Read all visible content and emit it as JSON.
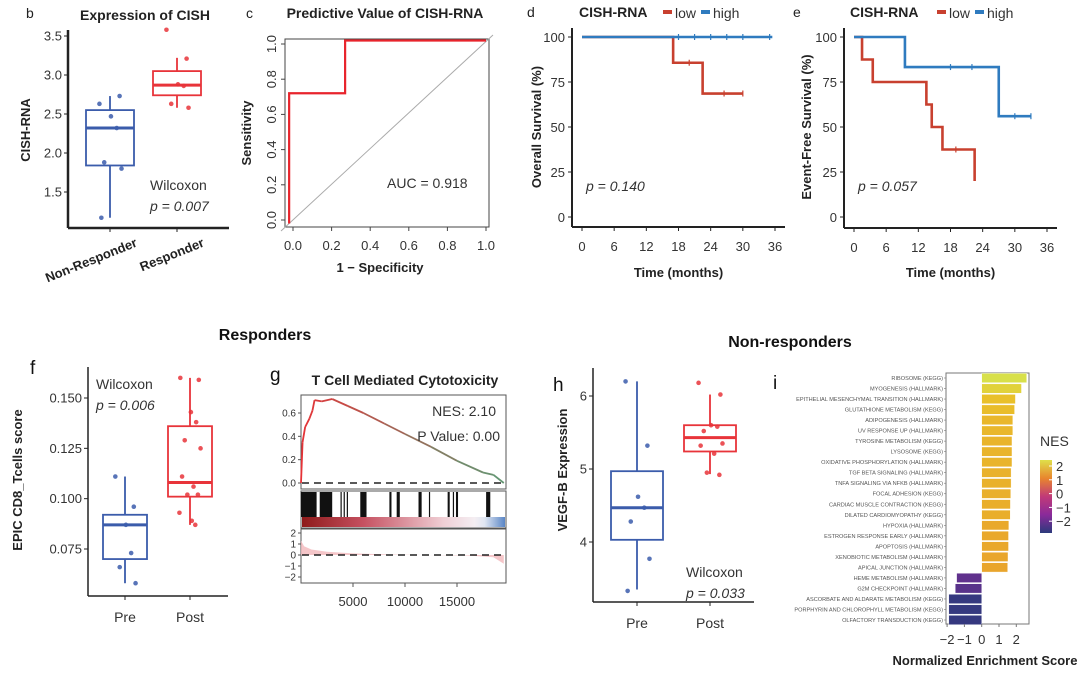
{
  "headers": {
    "responders": "Responders",
    "non_responders": "Non-responders"
  },
  "colors": {
    "blue": "#3b5cab",
    "red": "#e8343a",
    "km_blue": "#2f7bbf",
    "km_red": "#c8402f"
  },
  "chart_data": [
    {
      "panel": "b",
      "type": "box",
      "title": "Expression of CISH",
      "ylabel": "CISH-RNA",
      "xlabel": "",
      "yticks": [
        "1.5",
        "2.0",
        "2.5",
        "3.0",
        "3.5"
      ],
      "ylim": [
        1.1,
        3.6
      ],
      "categories": [
        "Non-Responder",
        "Responder"
      ],
      "boxes": [
        {
          "q1": 1.84,
          "median": 2.32,
          "q3": 2.55,
          "whisker_low": 1.17,
          "whisker_high": 2.73,
          "points": [
            2.63,
            2.73,
            2.47,
            2.32,
            1.88,
            1.8,
            1.17
          ]
        },
        {
          "q1": 2.74,
          "median": 2.87,
          "q3": 3.05,
          "whisker_low": 2.58,
          "whisker_high": 3.22,
          "points": [
            3.58,
            3.21,
            2.88,
            2.86,
            2.63,
            2.58
          ]
        }
      ],
      "annotation": [
        "Wilcoxon",
        "p = 0.007"
      ]
    },
    {
      "panel": "c",
      "type": "line",
      "title": "Predictive Value of CISH-RNA",
      "xlabel": "1 − Specificity",
      "ylabel": "Sensitivity",
      "xticks": [
        "0.0",
        "0.2",
        "0.4",
        "0.6",
        "0.8",
        "1.0"
      ],
      "yticks": [
        "0.0",
        "0.2",
        "0.4",
        "0.6",
        "0.8",
        "1.0"
      ],
      "xlim": [
        0,
        1
      ],
      "ylim": [
        0,
        1
      ],
      "roc": {
        "fpr": [
          -0.02,
          -0.02,
          0.27,
          0.27,
          1.0
        ],
        "tpr": [
          -0.02,
          0.72,
          0.72,
          1.02,
          1.02
        ]
      },
      "annotation": "AUC = 0.918"
    },
    {
      "panel": "d",
      "type": "line",
      "legend_title": "CISH-RNA",
      "xlabel": "Time (months)",
      "ylabel": "Overall Survival (%)",
      "xticks": [
        "0",
        "6",
        "12",
        "18",
        "24",
        "30",
        "36"
      ],
      "yticks": [
        "0",
        "25",
        "50",
        "75",
        "100"
      ],
      "xlim": [
        0,
        36
      ],
      "ylim": [
        0,
        100
      ],
      "series": [
        {
          "name": "low",
          "step_times": [
            0,
            17,
            22.5
          ],
          "survival": [
            100,
            85.7,
            68.6
          ],
          "end": 30,
          "censored": [
            20,
            26.5,
            30
          ]
        },
        {
          "name": "high",
          "step_times": [
            0
          ],
          "survival": [
            100
          ],
          "end": 35.5,
          "censored": [
            18,
            21,
            24,
            27,
            30,
            35
          ]
        }
      ],
      "annotation": "p = 0.140"
    },
    {
      "panel": "e",
      "type": "line",
      "legend_title": "CISH-RNA",
      "xlabel": "Time (months)",
      "ylabel": "Event-Free Survival (%)",
      "xticks": [
        "0",
        "6",
        "12",
        "18",
        "24",
        "30",
        "36"
      ],
      "yticks": [
        "0",
        "25",
        "50",
        "75",
        "100"
      ],
      "xlim": [
        0,
        36
      ],
      "ylim": [
        0,
        100
      ],
      "series": [
        {
          "name": "low",
          "step_times": [
            0,
            1.5,
            3.5,
            13.5,
            14.5,
            16.5,
            22.5
          ],
          "survival": [
            100,
            87.5,
            75,
            62.5,
            50,
            37.5,
            20
          ],
          "end": 22.5,
          "censored": [
            19
          ]
        },
        {
          "name": "high",
          "step_times": [
            0,
            9.5,
            27
          ],
          "survival": [
            100,
            83.3,
            56
          ],
          "end": 33,
          "censored": [
            18,
            22,
            30,
            33
          ]
        }
      ],
      "annotation": "p = 0.057"
    },
    {
      "panel": "f",
      "type": "box",
      "ylabel": "EPIC CD8_Tcells score",
      "yticks": [
        "0.075",
        "0.100",
        "0.125",
        "0.150"
      ],
      "ylim": [
        0.055,
        0.165
      ],
      "categories": [
        "Pre",
        "Post"
      ],
      "boxes": [
        {
          "q1": 0.07,
          "median": 0.087,
          "q3": 0.092,
          "whisker_low": 0.058,
          "whisker_high": 0.111,
          "points": [
            0.111,
            0.096,
            0.087,
            0.073,
            0.066,
            0.058
          ]
        },
        {
          "q1": 0.101,
          "median": 0.108,
          "q3": 0.136,
          "whisker_low": 0.087,
          "whisker_high": 0.16,
          "points": [
            0.16,
            0.159,
            0.143,
            0.138,
            0.129,
            0.125,
            0.111,
            0.106,
            0.102,
            0.102,
            0.093,
            0.089,
            0.087
          ]
        }
      ],
      "annotation": [
        "Wilcoxon",
        "p = 0.006"
      ]
    },
    {
      "panel": "g",
      "type": "line",
      "title": "T Cell Mediated Cytotoxicity",
      "xticks": [
        "5000",
        "10000",
        "15000"
      ],
      "es_yticks": [
        "0.0",
        "0.2",
        "0.4",
        "0.6"
      ],
      "metric_yticks": [
        "2",
        "1",
        "0",
        "−1",
        "−2"
      ],
      "xlim": [
        0,
        19600
      ],
      "es_ylim": [
        -0.03,
        0.78
      ],
      "running_es": [
        [
          0,
          0
        ],
        [
          150,
          0.35
        ],
        [
          400,
          0.48
        ],
        [
          800,
          0.55
        ],
        [
          1100,
          0.62
        ],
        [
          1300,
          0.71
        ],
        [
          2000,
          0.7
        ],
        [
          3000,
          0.72
        ],
        [
          4500,
          0.66
        ],
        [
          6000,
          0.6
        ],
        [
          8000,
          0.51
        ],
        [
          10000,
          0.42
        ],
        [
          12500,
          0.31
        ],
        [
          15000,
          0.19
        ],
        [
          17500,
          0.09
        ],
        [
          18500,
          0.07
        ],
        [
          19500,
          0
        ]
      ],
      "hit_ranges": [
        [
          0,
          1500
        ],
        [
          1800,
          3000
        ],
        [
          3800,
          3900
        ],
        [
          4100,
          4200
        ],
        [
          4400,
          4500
        ],
        [
          5700,
          6300
        ],
        [
          8500,
          8700
        ],
        [
          9200,
          9500
        ],
        [
          11300,
          11600
        ],
        [
          12300,
          12400
        ],
        [
          14100,
          14300
        ],
        [
          14600,
          14700
        ],
        [
          14900,
          15100
        ],
        [
          17800,
          18200
        ]
      ],
      "ranked_metric": [
        [
          0,
          1.3
        ],
        [
          300,
          0.8
        ],
        [
          1000,
          0.5
        ],
        [
          2500,
          0.3
        ],
        [
          5000,
          0.15
        ],
        [
          9000,
          0.03
        ],
        [
          12000,
          0
        ],
        [
          16000,
          -0.05
        ],
        [
          18500,
          -0.2
        ],
        [
          19500,
          -0.8
        ]
      ],
      "annotation": [
        "NES: 2.10",
        "P Value: 0.00"
      ]
    },
    {
      "panel": "h",
      "type": "box",
      "ylabel": "VEGF-B Expression",
      "yticks": [
        "4",
        "5",
        "6"
      ],
      "ylim": [
        3.2,
        6.35
      ],
      "categories": [
        "Pre",
        "Post"
      ],
      "boxes": [
        {
          "q1": 4.03,
          "median": 4.47,
          "q3": 4.97,
          "whisker_low": 3.35,
          "whisker_high": 6.2,
          "points": [
            6.2,
            5.32,
            4.62,
            4.47,
            4.28,
            3.77,
            3.33
          ]
        },
        {
          "q1": 5.24,
          "median": 5.43,
          "q3": 5.6,
          "whisker_low": 4.93,
          "whisker_high": 6.02,
          "points": [
            6.18,
            6.02,
            5.6,
            5.58,
            5.52,
            5.35,
            5.32,
            5.21,
            4.95,
            4.92
          ]
        }
      ],
      "annotation": [
        "Wilcoxon",
        "p = 0.033"
      ]
    },
    {
      "panel": "i",
      "type": "bar",
      "orientation": "horizontal",
      "xlabel": "Normalized Enrichment Score",
      "legend_title": "NES",
      "xticks": [
        "−2",
        "−1",
        "0",
        "1",
        "2"
      ],
      "xlim": [
        -2.2,
        2.8
      ],
      "legend_ticks": [
        "2",
        "1",
        "0",
        "−1",
        "−2"
      ],
      "colorscale": [
        [
          -2,
          "#2c3a7c"
        ],
        [
          -1,
          "#8a2a9a"
        ],
        [
          0,
          "#c13a78"
        ],
        [
          1,
          "#e8862e"
        ],
        [
          2,
          "#e9c32a"
        ],
        [
          2.6,
          "#d8e04a"
        ]
      ],
      "categories": [
        "RIBOSOME (KEGG)",
        "MYOGENESIS (HALLMARK)",
        "EPITHELIAL MESENCHYMAL TRANSITION (HALLMARK)",
        "GLUTATHIONE METABOLISM (KEGG)",
        "ADIPOGENESIS (HALLMARK)",
        "UV RESPONSE UP (HALLMARK)",
        "TYROSINE METABOLISM (KEGG)",
        "LYSOSOME (KEGG)",
        "OXIDATIVE PHOSPHORYLATION (HALLMARK)",
        "TGF BETA SIGNALING (HALLMARK)",
        "TNFA SIGNALING VIA NFKB (HALLMARK)",
        "FOCAL ADHESION (KEGG)",
        "CARDIAC MUSCLE CONTRACTION (KEGG)",
        "DILATED CARDIOMYOPATHY (KEGG)",
        "HYPOXIA (HALLMARK)",
        "ESTROGEN RESPONSE EARLY (HALLMARK)",
        "APOPTOSIS (HALLMARK)",
        "XENOBIOTIC METABOLISM (HALLMARK)",
        "APICAL JUNCTION (HALLMARK)",
        "HEME METABOLISM (HALLMARK)",
        "G2M CHECKPOINT (HALLMARK)",
        "ASCORBATE AND ALDARATE METABOLISM (KEGG)",
        "PORPHYRIN AND CHLOROPHYLL METABOLISM (KEGG)",
        "OLFACTORY TRANSDUCTION (KEGG)"
      ],
      "values": [
        2.6,
        2.3,
        1.95,
        1.9,
        1.8,
        1.8,
        1.75,
        1.75,
        1.75,
        1.7,
        1.7,
        1.68,
        1.66,
        1.65,
        1.57,
        1.55,
        1.55,
        1.52,
        1.5,
        -1.45,
        -1.53,
        -1.9,
        -1.9,
        -1.9
      ]
    }
  ]
}
